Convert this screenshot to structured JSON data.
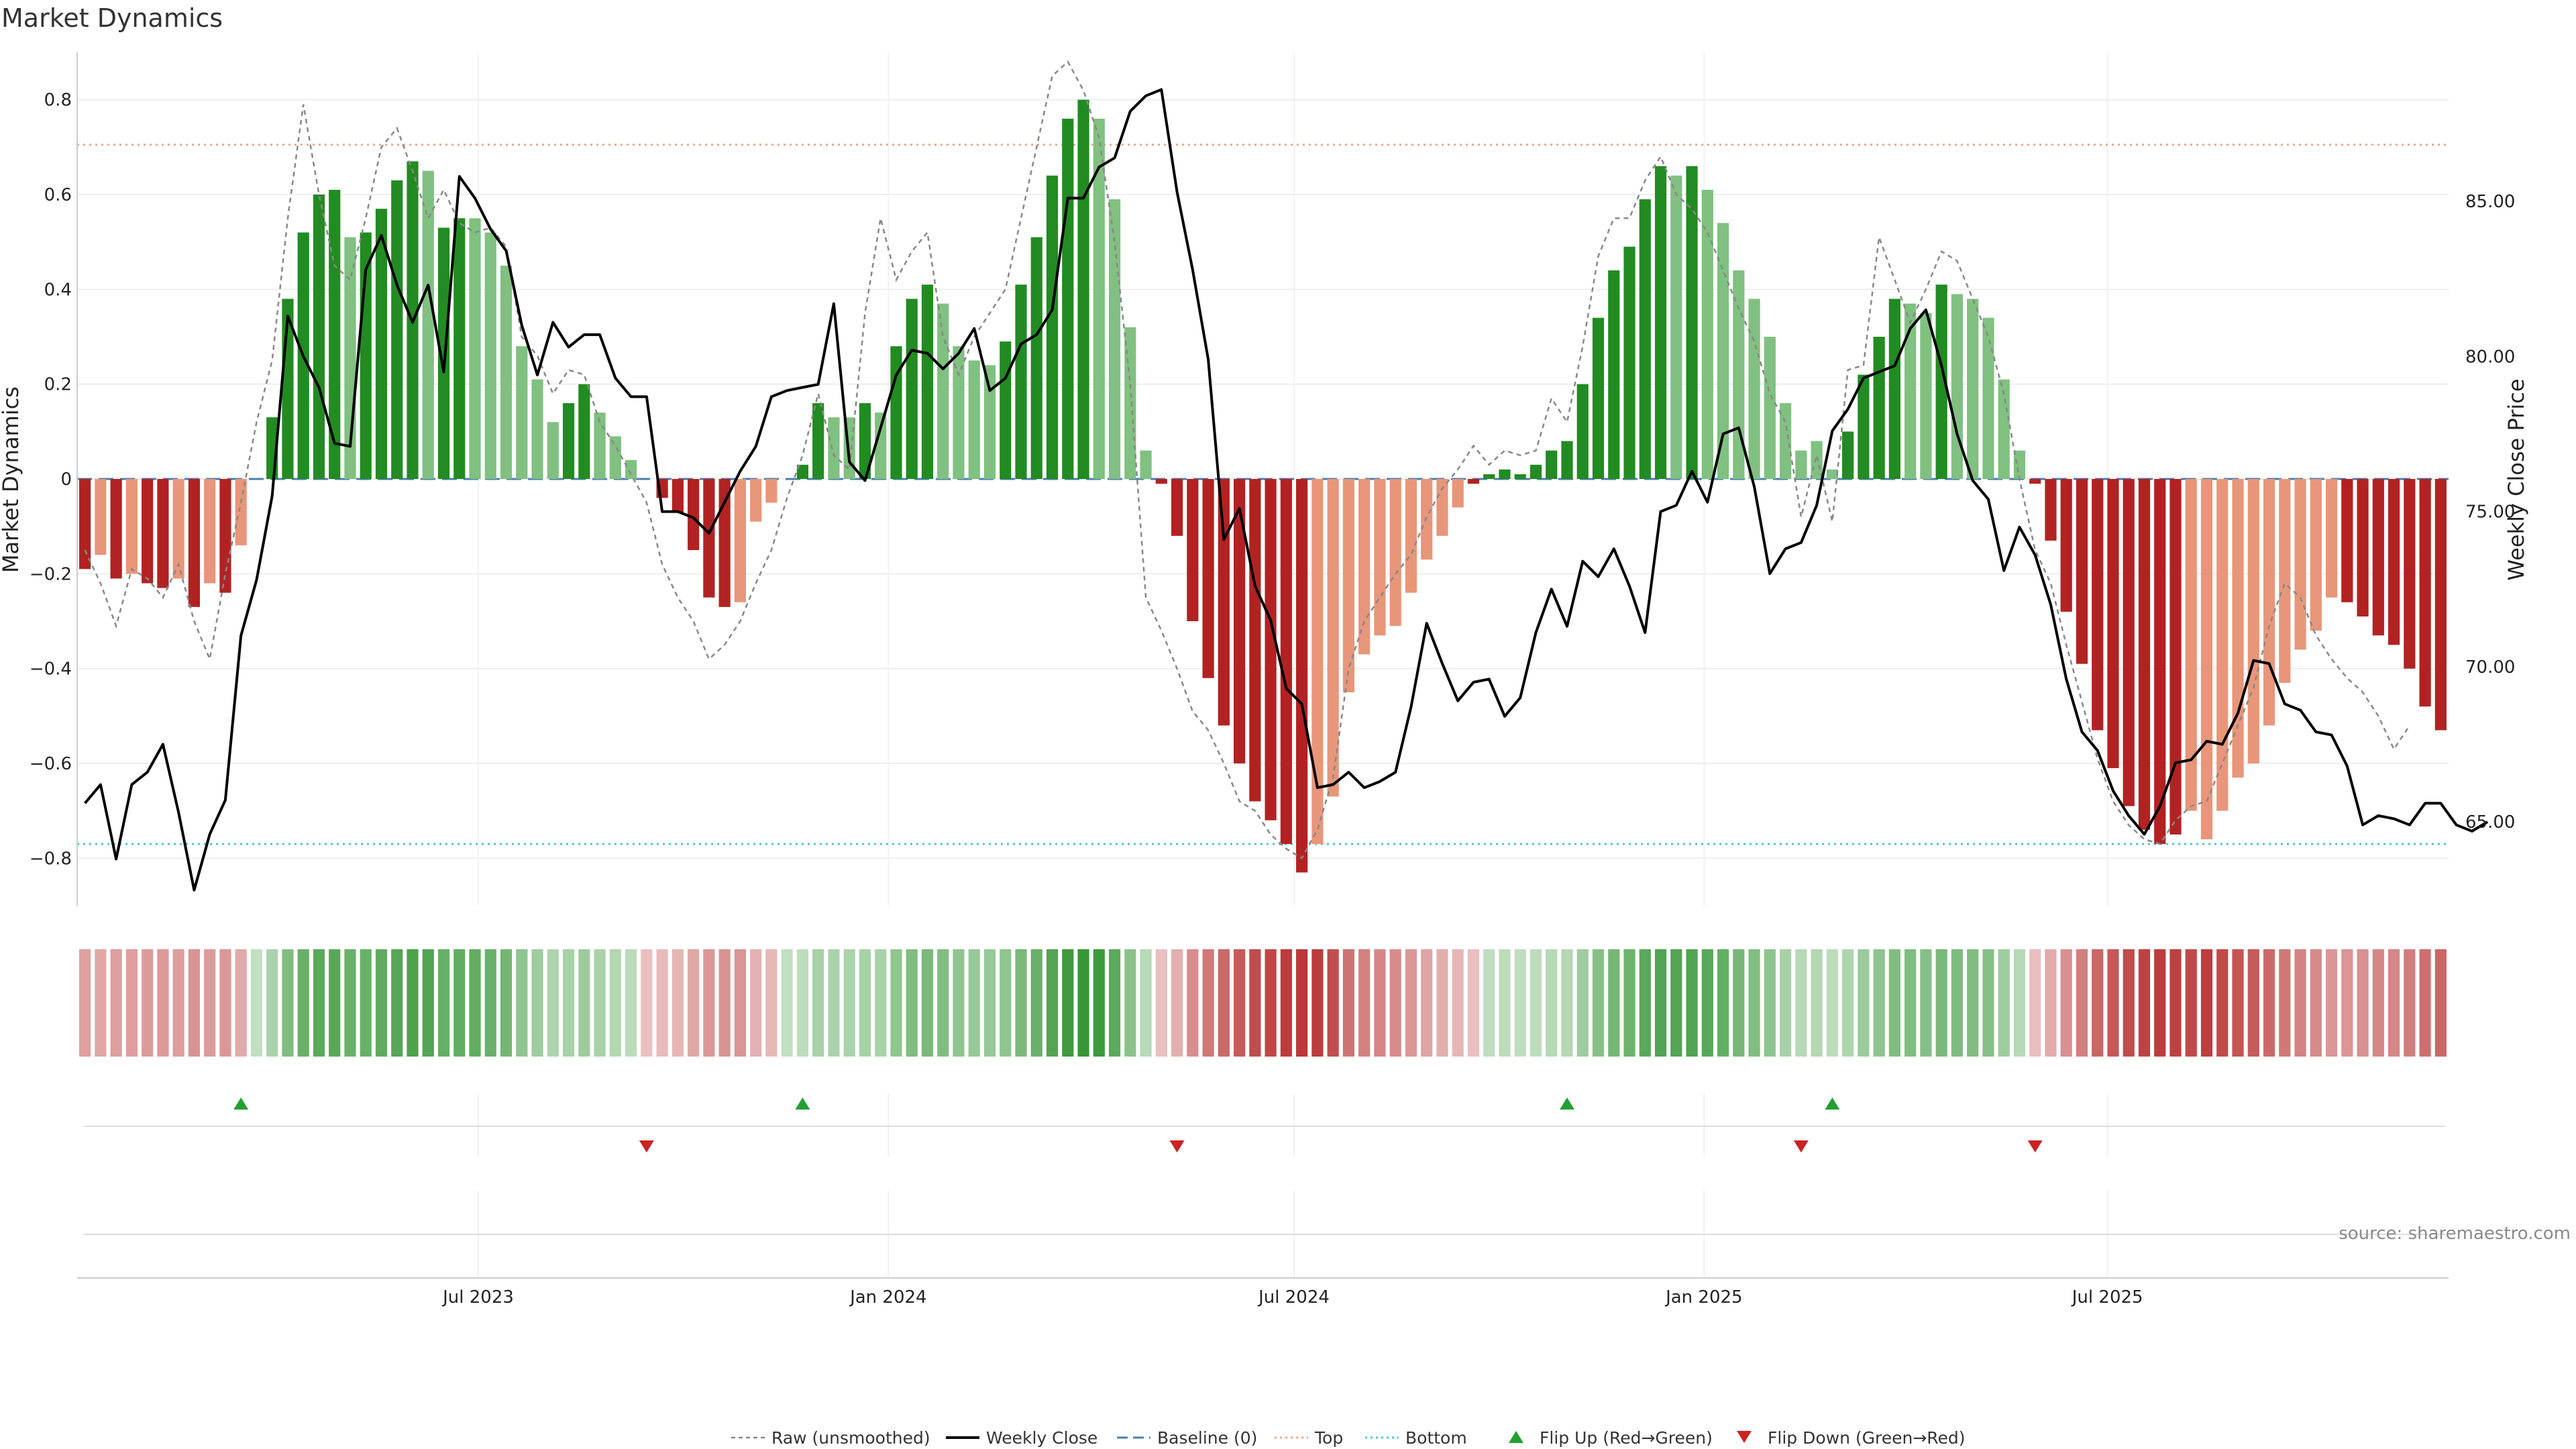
{
  "title": "Market Dynamics",
  "source": "source: sharemaestro.com",
  "colors": {
    "strong_green": "#228b22",
    "light_green": "#80c080",
    "strong_red": "#b22222",
    "light_red": "#e8967a",
    "close_line": "#000000",
    "raw_line": "#888888",
    "baseline": "#4a7fb0",
    "top_line": "#e8a88a",
    "bottom_line": "#48c8c8",
    "flip_up": "#22a033",
    "flip_down": "#cc2222"
  },
  "legend": [
    {
      "key": "raw",
      "label": "Raw (unsmoothed)"
    },
    {
      "key": "close",
      "label": "Weekly Close"
    },
    {
      "key": "baseline",
      "label": "Baseline (0)"
    },
    {
      "key": "top",
      "label": "Top"
    },
    {
      "key": "bottom",
      "label": "Bottom"
    },
    {
      "key": "flip_up",
      "label": "Flip Up (Red→Green)"
    },
    {
      "key": "flip_down",
      "label": "Flip Down (Green→Red)"
    }
  ],
  "chart_data": {
    "type": "bar",
    "x_start": "2023-01-02",
    "x_interval": "1 week",
    "x_ticks": [
      "Jul 2023",
      "Jan 2024",
      "Jul 2024",
      "Jan 2025",
      "Jul 2025"
    ],
    "ylabel_left": "Market Dynamics",
    "ylabel_right": "Weekly Close Price",
    "ylim_left": [
      -0.9,
      0.9
    ],
    "ylim_right": [
      62.3,
      89.8
    ],
    "y_ticks_left": [
      "−0.8",
      "−0.6",
      "−0.4",
      "−0.2",
      "0",
      "0.2",
      "0.4",
      "0.6",
      "0.8"
    ],
    "y_ticks_right": [
      "65.00",
      "70.00",
      "75.00",
      "80.00",
      "85.00"
    ],
    "top_level": 0.705,
    "bottom_level": -0.77,
    "baseline": 0,
    "grid": true,
    "legend_position": "bottom",
    "series": [
      {
        "name": "Market Dynamics",
        "values": [
          -0.19,
          -0.16,
          -0.21,
          -0.2,
          -0.22,
          -0.23,
          -0.21,
          -0.27,
          -0.22,
          -0.24,
          -0.14,
          0,
          0.13,
          0.38,
          0.52,
          0.6,
          0.61,
          0.51,
          0.52,
          0.57,
          0.63,
          0.67,
          0.65,
          0.53,
          0.55,
          0.55,
          0.52,
          0.45,
          0.28,
          0.21,
          0.12,
          0.16,
          0.2,
          0.14,
          0.09,
          0.04,
          0,
          -0.04,
          -0.07,
          -0.15,
          -0.25,
          -0.27,
          -0.26,
          -0.09,
          -0.05,
          0,
          0.03,
          0.16,
          0.13,
          0.13,
          0.16,
          0.14,
          0.28,
          0.38,
          0.41,
          0.37,
          0.28,
          0.25,
          0.24,
          0.29,
          0.41,
          0.51,
          0.64,
          0.76,
          0.8,
          0.76,
          0.59,
          0.32,
          0.06,
          -0.01,
          -0.12,
          -0.3,
          -0.42,
          -0.52,
          -0.6,
          -0.68,
          -0.72,
          -0.77,
          -0.83,
          -0.77,
          -0.67,
          -0.45,
          -0.37,
          -0.33,
          -0.31,
          -0.24,
          -0.17,
          -0.12,
          -0.06,
          -0.01,
          0.01,
          0.02,
          0.01,
          0.03,
          0.06,
          0.08,
          0.2,
          0.34,
          0.44,
          0.49,
          0.59,
          0.66,
          0.64,
          0.66,
          0.61,
          0.54,
          0.44,
          0.38,
          0.3,
          0.16,
          0.06,
          0.08,
          0.02,
          0.1,
          0.22,
          0.3,
          0.38,
          0.37,
          0.35,
          0.41,
          0.39,
          0.38,
          0.34,
          0.21,
          0.06,
          -0.01,
          -0.13,
          -0.28,
          -0.39,
          -0.53,
          -0.61,
          -0.69,
          -0.74,
          -0.77,
          -0.75,
          -0.7,
          -0.76,
          -0.7,
          -0.63,
          -0.6,
          -0.52,
          -0.43,
          -0.36,
          -0.32,
          -0.25,
          -0.26,
          -0.29,
          -0.33,
          -0.35,
          -0.4,
          -0.48,
          -0.53
        ],
        "states": [
          "R",
          "r",
          "R",
          "r",
          "R",
          "R",
          "r",
          "R",
          "r",
          "R",
          "r",
          "n",
          "G",
          "G",
          "G",
          "G",
          "G",
          "g",
          "G",
          "G",
          "G",
          "G",
          "g",
          "G",
          "G",
          "g",
          "g",
          "g",
          "g",
          "g",
          "g",
          "G",
          "G",
          "g",
          "g",
          "g",
          "n",
          "R",
          "R",
          "R",
          "R",
          "R",
          "r",
          "r",
          "r",
          "n",
          "G",
          "G",
          "g",
          "g",
          "G",
          "g",
          "G",
          "G",
          "G",
          "g",
          "g",
          "g",
          "g",
          "G",
          "G",
          "G",
          "G",
          "G",
          "G",
          "g",
          "g",
          "g",
          "g",
          "R",
          "R",
          "R",
          "R",
          "R",
          "R",
          "R",
          "R",
          "R",
          "R",
          "r",
          "r",
          "r",
          "r",
          "r",
          "r",
          "r",
          "r",
          "r",
          "r",
          "R",
          "G",
          "G",
          "G",
          "G",
          "G",
          "G",
          "G",
          "G",
          "G",
          "G",
          "G",
          "G",
          "g",
          "G",
          "g",
          "g",
          "g",
          "g",
          "g",
          "g",
          "g",
          "g",
          "g",
          "G",
          "G",
          "G",
          "G",
          "g",
          "g",
          "G",
          "g",
          "g",
          "g",
          "g",
          "g",
          "R",
          "R",
          "R",
          "R",
          "R",
          "R",
          "R",
          "R",
          "R",
          "R",
          "r",
          "r",
          "r",
          "r",
          "r",
          "r",
          "r",
          "r",
          "r",
          "r",
          "R",
          "R",
          "R",
          "R",
          "R",
          "R",
          "R"
        ]
      },
      {
        "name": "Raw (unsmoothed)",
        "values": [
          -0.15,
          -0.22,
          -0.31,
          -0.19,
          -0.21,
          -0.25,
          -0.18,
          -0.3,
          -0.38,
          -0.2,
          -0.05,
          0.12,
          0.25,
          0.55,
          0.79,
          0.6,
          0.45,
          0.42,
          0.55,
          0.7,
          0.74,
          0.65,
          0.55,
          0.61,
          0.54,
          0.52,
          0.53,
          0.49,
          0.3,
          0.26,
          0.18,
          0.23,
          0.22,
          0.12,
          0.07,
          0.01,
          -0.05,
          -0.18,
          -0.25,
          -0.3,
          -0.38,
          -0.35,
          -0.3,
          -0.22,
          -0.15,
          -0.04,
          0.05,
          0.18,
          0.05,
          0.02,
          0.35,
          0.55,
          0.42,
          0.48,
          0.52,
          0.3,
          0.22,
          0.3,
          0.35,
          0.4,
          0.55,
          0.7,
          0.85,
          0.88,
          0.82,
          0.72,
          0.5,
          0.2,
          -0.25,
          -0.32,
          -0.4,
          -0.49,
          -0.53,
          -0.6,
          -0.68,
          -0.7,
          -0.75,
          -0.78,
          -0.8,
          -0.74,
          -0.63,
          -0.4,
          -0.3,
          -0.25,
          -0.2,
          -0.16,
          -0.08,
          -0.02,
          0.02,
          0.07,
          0.03,
          0.06,
          0.05,
          0.06,
          0.17,
          0.12,
          0.28,
          0.47,
          0.55,
          0.55,
          0.63,
          0.68,
          0.6,
          0.57,
          0.52,
          0.44,
          0.36,
          0.29,
          0.18,
          0.12,
          -0.08,
          0.05,
          -0.09,
          0.23,
          0.24,
          0.51,
          0.42,
          0.33,
          0.4,
          0.48,
          0.46,
          0.38,
          0.3,
          0.18,
          0.0,
          -0.15,
          -0.22,
          -0.35,
          -0.47,
          -0.59,
          -0.68,
          -0.73,
          -0.76,
          -0.77,
          -0.72,
          -0.69,
          -0.68,
          -0.6,
          -0.52,
          -0.44,
          -0.31,
          -0.22,
          -0.25,
          -0.33,
          -0.38,
          -0.42,
          -0.45,
          -0.5,
          -0.57,
          -0.52
        ]
      },
      {
        "name": "Weekly Close",
        "values": [
          65.6,
          66.2,
          63.8,
          66.2,
          66.6,
          67.5,
          65.3,
          62.8,
          64.6,
          65.7,
          71.0,
          72.8,
          75.5,
          81.3,
          80.0,
          79.0,
          77.2,
          77.1,
          82.8,
          83.9,
          82.3,
          81.1,
          82.3,
          79.5,
          85.8,
          85.1,
          84.1,
          83.4,
          81.0,
          79.4,
          81.1,
          80.3,
          80.7,
          80.7,
          79.3,
          78.7,
          78.7,
          75.0,
          75.0,
          74.8,
          74.3,
          75.3,
          76.3,
          77.1,
          78.7,
          78.9,
          79.0,
          79.1,
          81.7,
          76.6,
          76.0,
          77.7,
          79.4,
          80.2,
          80.1,
          79.6,
          80.1,
          80.9,
          78.9,
          79.3,
          80.4,
          80.7,
          81.5,
          85.1,
          85.1,
          86.1,
          86.4,
          87.9,
          88.4,
          88.6,
          85.3,
          82.8,
          79.9,
          74.1,
          75.1,
          72.6,
          71.5,
          69.3,
          68.8,
          66.1,
          66.2,
          66.6,
          66.1,
          66.3,
          66.6,
          68.7,
          71.4,
          70.1,
          68.9,
          69.5,
          69.6,
          68.4,
          69.0,
          71.1,
          72.5,
          71.3,
          73.4,
          72.9,
          73.8,
          72.6,
          71.1,
          75.0,
          75.2,
          76.3,
          75.3,
          77.5,
          77.7,
          75.8,
          73.0,
          73.8,
          74.0,
          75.2,
          77.6,
          78.3,
          79.3,
          79.5,
          79.7,
          80.9,
          81.5,
          79.7,
          77.5,
          76.0,
          75.4,
          73.1,
          74.5,
          73.6,
          72.0,
          69.6,
          67.9,
          67.3,
          66.0,
          65.2,
          64.6,
          65.5,
          66.9,
          67.0,
          67.6,
          67.5,
          68.5,
          70.2,
          70.1,
          68.8,
          68.6,
          67.9,
          67.8,
          66.8,
          64.9,
          65.2,
          65.1,
          64.9,
          65.6,
          65.6,
          64.9,
          64.7,
          65.0
        ]
      },
      {
        "name": "Flip Up (Red→Green)",
        "x": [
          "2023-03-13",
          "2023-11-20",
          "2024-10-28",
          "2025-02-24"
        ]
      },
      {
        "name": "Flip Down (Green→Red)",
        "x": [
          "2023-09-11",
          "2024-05-06",
          "2025-02-10",
          "2025-05-26"
        ]
      }
    ]
  }
}
